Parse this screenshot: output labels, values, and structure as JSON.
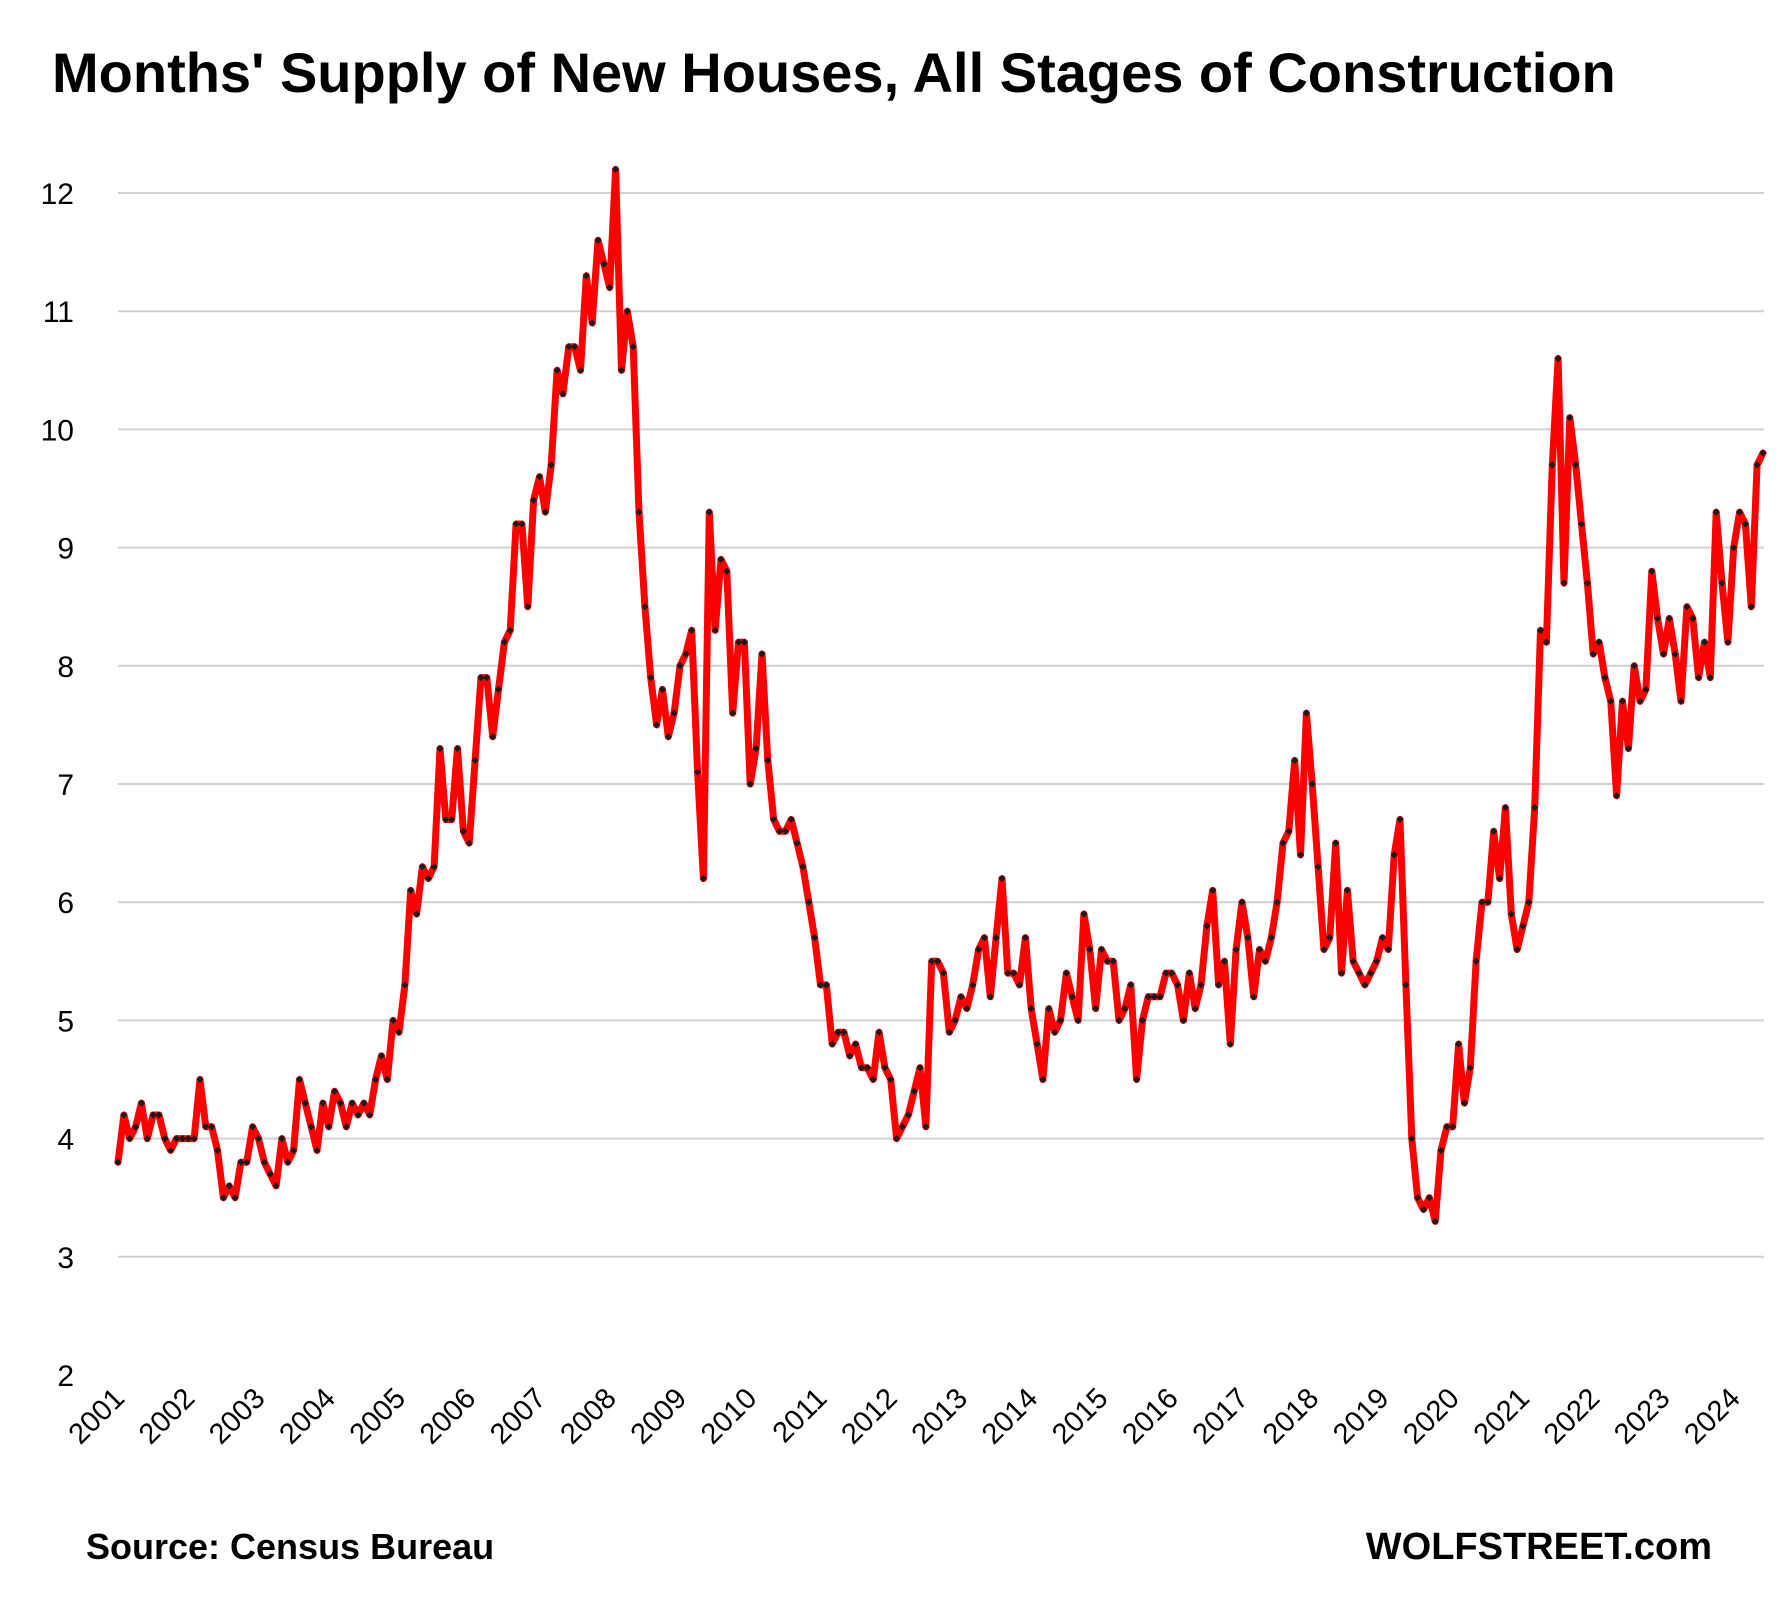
{
  "chart_data": {
    "type": "line",
    "title": "Months' Supply of New Houses, All Stages of Construction",
    "xlabel": "",
    "ylabel": "",
    "ylim": [
      2,
      12
    ],
    "yticks": [
      2,
      3,
      4,
      5,
      6,
      7,
      8,
      9,
      10,
      11,
      12
    ],
    "xticks": [
      "2001",
      "2002",
      "2003",
      "2004",
      "2005",
      "2006",
      "2007",
      "2008",
      "2009",
      "2010",
      "2011",
      "2012",
      "2013",
      "2014",
      "2015",
      "2016",
      "2017",
      "2018",
      "2019",
      "2020",
      "2021",
      "2022",
      "2023",
      "2024"
    ],
    "x_start": "2001-01",
    "frequency": "monthly",
    "grid": "horizontal",
    "legend": "none",
    "series": [
      {
        "color": "#ff0000",
        "marker_color": "#1a1a1a",
        "values": [
          3.8,
          4.2,
          4.0,
          4.1,
          4.3,
          4.0,
          4.2,
          4.2,
          4.0,
          3.9,
          4.0,
          4.0,
          4.0,
          4.0,
          4.5,
          4.1,
          4.1,
          3.9,
          3.5,
          3.6,
          3.5,
          3.8,
          3.8,
          4.1,
          4.0,
          3.8,
          3.7,
          3.6,
          4.0,
          3.8,
          3.9,
          4.5,
          4.3,
          4.1,
          3.9,
          4.3,
          4.1,
          4.4,
          4.3,
          4.1,
          4.3,
          4.2,
          4.3,
          4.2,
          4.5,
          4.7,
          4.5,
          5.0,
          4.9,
          5.3,
          6.1,
          5.9,
          6.3,
          6.2,
          6.3,
          7.3,
          6.7,
          6.7,
          7.3,
          6.6,
          6.5,
          7.2,
          7.9,
          7.9,
          7.4,
          7.8,
          8.2,
          8.3,
          9.2,
          9.2,
          8.5,
          9.4,
          9.6,
          9.3,
          9.7,
          10.5,
          10.3,
          10.7,
          10.7,
          10.5,
          11.3,
          10.9,
          11.6,
          11.4,
          11.2,
          12.2,
          10.5,
          11.0,
          10.7,
          9.3,
          8.5,
          7.9,
          7.5,
          7.8,
          7.4,
          7.6,
          8.0,
          8.1,
          8.3,
          7.1,
          6.2,
          9.3,
          8.3,
          8.9,
          8.8,
          7.6,
          8.2,
          8.2,
          7.0,
          7.3,
          8.1,
          7.2,
          6.7,
          6.6,
          6.6,
          6.7,
          6.5,
          6.3,
          6.0,
          5.7,
          5.3,
          5.3,
          4.8,
          4.9,
          4.9,
          4.7,
          4.8,
          4.6,
          4.6,
          4.5,
          4.9,
          4.6,
          4.5,
          4.0,
          4.1,
          4.2,
          4.4,
          4.6,
          4.1,
          5.5,
          5.5,
          5.4,
          4.9,
          5.0,
          5.2,
          5.1,
          5.3,
          5.6,
          5.7,
          5.2,
          5.7,
          6.2,
          5.4,
          5.4,
          5.3,
          5.7,
          5.1,
          4.8,
          4.5,
          5.1,
          4.9,
          5.0,
          5.4,
          5.2,
          5.0,
          5.9,
          5.6,
          5.1,
          5.6,
          5.5,
          5.5,
          5.0,
          5.1,
          5.3,
          4.5,
          5.0,
          5.2,
          5.2,
          5.2,
          5.4,
          5.4,
          5.3,
          5.0,
          5.4,
          5.1,
          5.3,
          5.8,
          6.1,
          5.3,
          5.5,
          4.8,
          5.6,
          6.0,
          5.7,
          5.2,
          5.6,
          5.5,
          5.7,
          6.0,
          6.5,
          6.6,
          7.2,
          6.4,
          7.6,
          7.0,
          6.3,
          5.6,
          5.7,
          6.5,
          5.4,
          6.1,
          5.5,
          5.4,
          5.3,
          5.4,
          5.5,
          5.7,
          5.6,
          6.4,
          6.7,
          5.3,
          4.0,
          3.5,
          3.4,
          3.5,
          3.3,
          3.9,
          4.1,
          4.1,
          4.8,
          4.3,
          4.6,
          5.5,
          6.0,
          6.0,
          6.6,
          6.2,
          6.8,
          5.9,
          5.6,
          5.8,
          6.0,
          6.8,
          8.3,
          8.2,
          9.7,
          10.6,
          8.7,
          10.1,
          9.7,
          9.2,
          8.7,
          8.1,
          8.2,
          7.9,
          7.7,
          6.9,
          7.7,
          7.3,
          8.0,
          7.7,
          7.8,
          8.8,
          8.4,
          8.1,
          8.4,
          8.1,
          7.7,
          8.5,
          8.4,
          7.9,
          8.2,
          7.9,
          9.3,
          8.7,
          8.2,
          9.0,
          9.3,
          9.2,
          8.5,
          9.7,
          9.8
        ]
      }
    ]
  },
  "footer": {
    "source": "Source: Census Bureau",
    "brand": "WOLFSTREET.com"
  }
}
